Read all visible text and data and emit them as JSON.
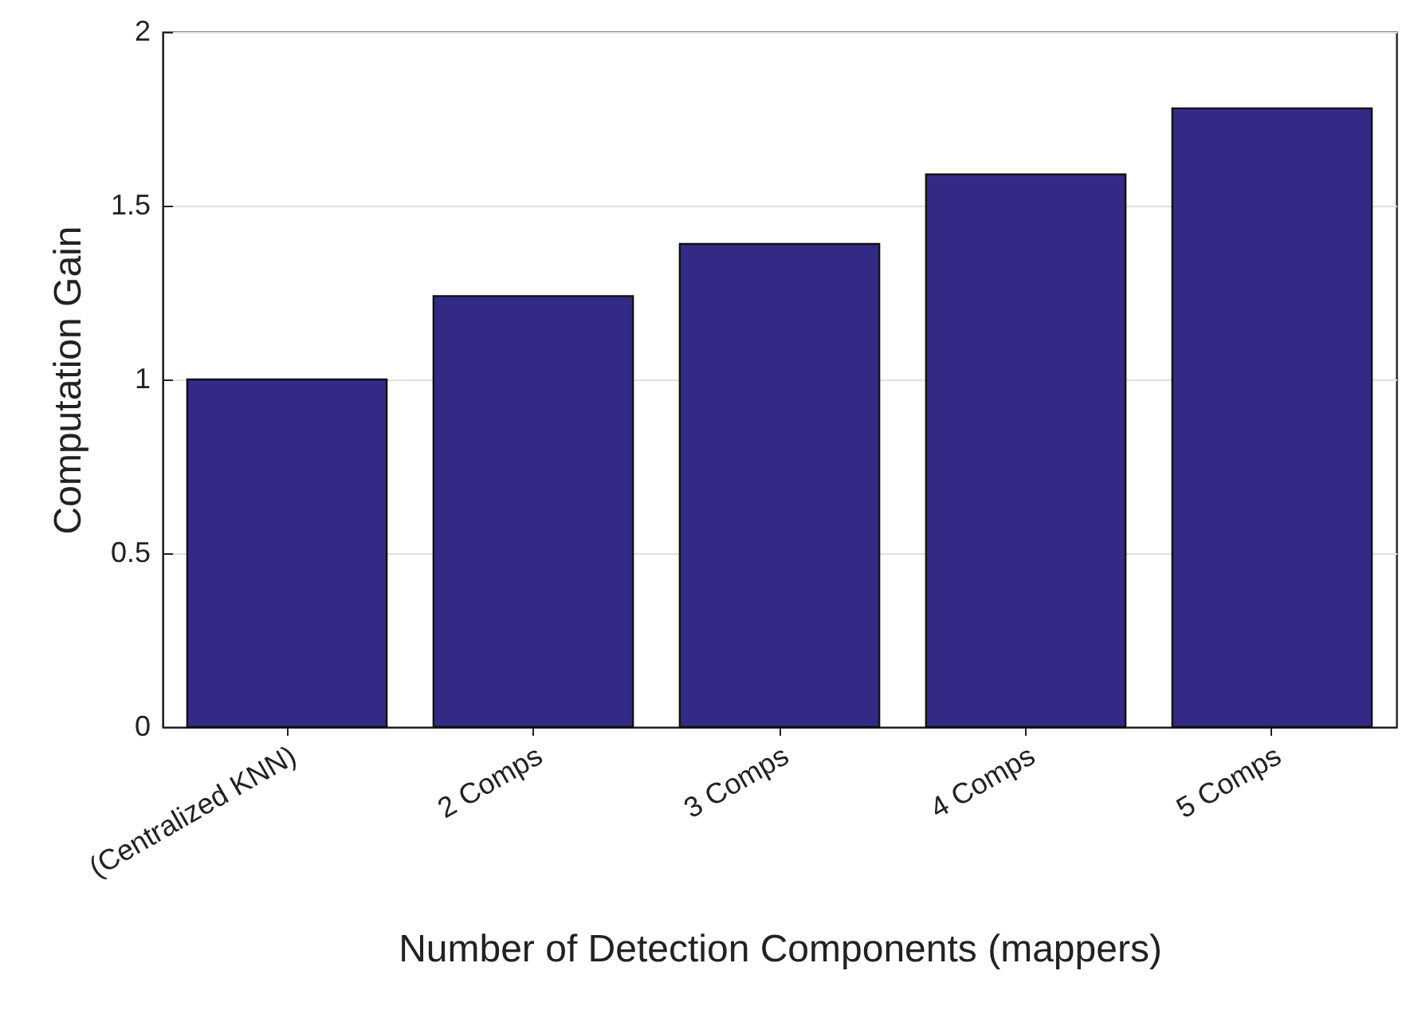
{
  "chart_data": {
    "type": "bar",
    "xlabel": "Number of Detection Components (mappers)",
    "ylabel": "Computation Gain",
    "categories": [
      "(Centralized KNN)",
      "2 Comps",
      "3 Comps",
      "4 Comps",
      "5 Comps"
    ],
    "values": [
      1.0,
      1.24,
      1.39,
      1.59,
      1.78
    ],
    "color": "#332a85",
    "ylim": [
      0,
      2
    ],
    "yticks": [
      0,
      0.5,
      1,
      1.5,
      2
    ],
    "grid": "y"
  }
}
